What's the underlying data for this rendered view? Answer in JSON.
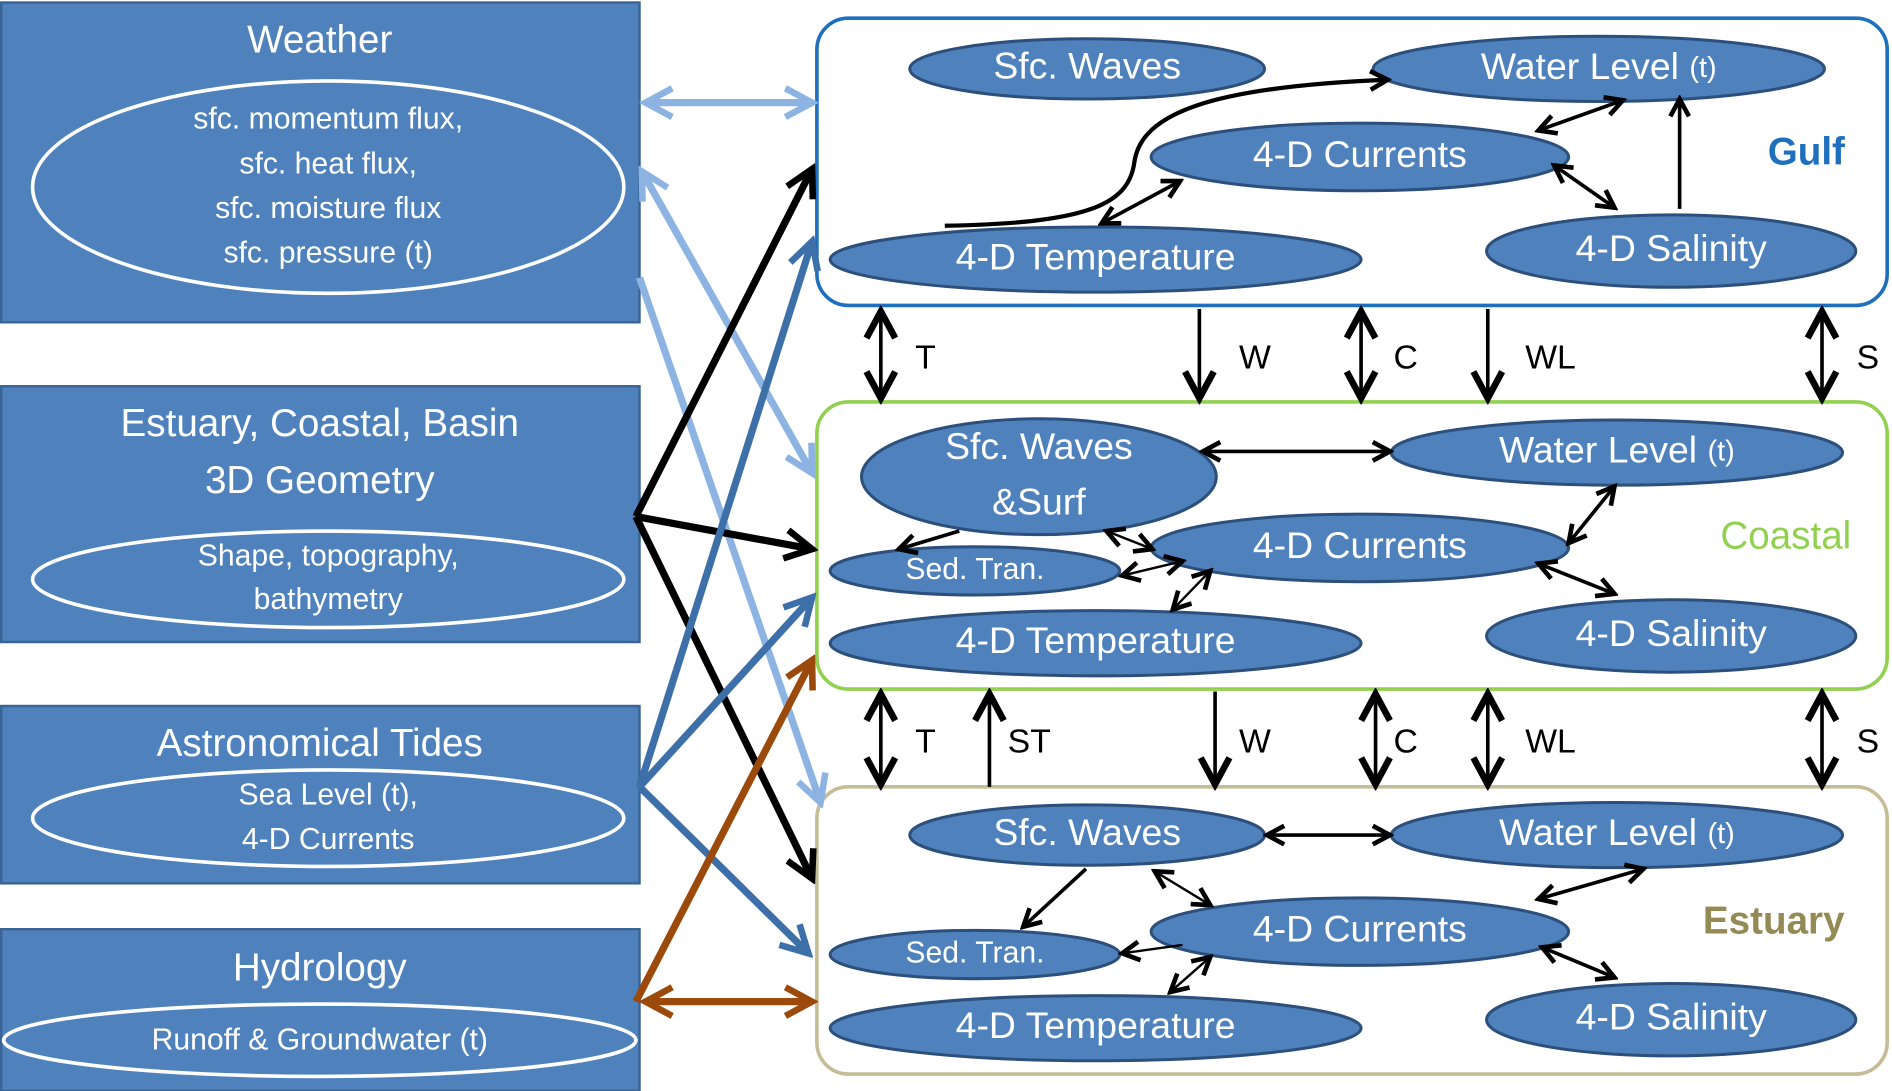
{
  "sources": [
    {
      "title": [
        "Weather"
      ],
      "details": [
        "sfc. momentum flux,",
        "sfc. heat flux,",
        "sfc. moisture flux",
        "sfc. pressure (t)"
      ]
    },
    {
      "title": [
        "Estuary, Coastal, Basin",
        "3D Geometry"
      ],
      "details": [
        "Shape, topography,",
        "bathymetry"
      ]
    },
    {
      "title": [
        "Astronomical Tides"
      ],
      "details": [
        "Sea Level (t),",
        "4-D Currents"
      ]
    },
    {
      "title": [
        "Hydrology"
      ],
      "details": [
        "Runoff & Groundwater (t)"
      ]
    }
  ],
  "domains": [
    {
      "label": "Gulf",
      "nodes": [
        {
          "lines": [
            "Sfc. Waves"
          ]
        },
        {
          "lines": [
            "Water Level"
          ],
          "qualifier": "(t)"
        },
        {
          "lines": [
            "4-D Currents"
          ]
        },
        {
          "lines": [
            "4-D Temperature"
          ]
        },
        {
          "lines": [
            "4-D Salinity"
          ]
        }
      ]
    },
    {
      "label": "Coastal",
      "nodes": [
        {
          "lines": [
            "Sfc. Waves",
            "&Surf"
          ]
        },
        {
          "lines": [
            "Water Level"
          ],
          "qualifier": "(t)"
        },
        {
          "lines": [
            "4-D Currents"
          ]
        },
        {
          "lines": [
            "Sed. Tran."
          ]
        },
        {
          "lines": [
            "4-D Temperature"
          ]
        },
        {
          "lines": [
            "4-D Salinity"
          ]
        }
      ]
    },
    {
      "label": "Estuary",
      "nodes": [
        {
          "lines": [
            "Sfc. Waves"
          ]
        },
        {
          "lines": [
            "Water Level"
          ],
          "qualifier": "(t)"
        },
        {
          "lines": [
            "4-D Currents"
          ]
        },
        {
          "lines": [
            "Sed. Tran."
          ]
        },
        {
          "lines": [
            "4-D Temperature"
          ]
        },
        {
          "lines": [
            "4-D Salinity"
          ]
        }
      ]
    }
  ],
  "links_upper": [
    "T",
    "W",
    "C",
    "WL",
    "S"
  ],
  "links_lower": [
    "T",
    "ST",
    "W",
    "C",
    "WL",
    "S"
  ]
}
